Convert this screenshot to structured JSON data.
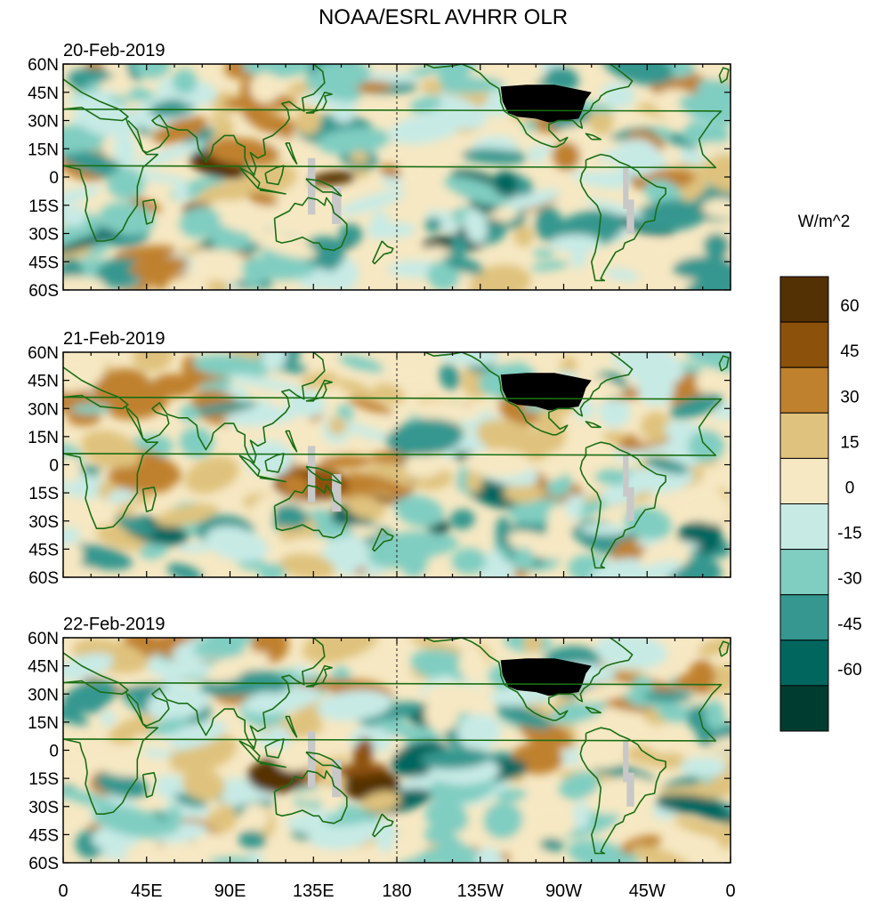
{
  "chart_data": {
    "type": "heatmap",
    "title": "NOAA/ESRL AVHRR OLR",
    "units": "W/m^2",
    "panels": [
      {
        "date": "20-Feb-2019"
      },
      {
        "date": "21-Feb-2019"
      },
      {
        "date": "22-Feb-2019"
      }
    ],
    "lat_ticks": [
      "60N",
      "45N",
      "30N",
      "15N",
      "0",
      "15S",
      "30S",
      "45S",
      "60S"
    ],
    "lat_values": [
      60,
      45,
      30,
      15,
      0,
      -15,
      -30,
      -45,
      -60
    ],
    "lon_ticks": [
      "0",
      "45E",
      "90E",
      "135E",
      "180",
      "135W",
      "90W",
      "45W",
      "0"
    ],
    "lon_values": [
      0,
      45,
      90,
      135,
      180,
      225,
      270,
      315,
      360
    ],
    "lon_range": [
      0,
      360
    ],
    "lat_range": [
      -60,
      60
    ],
    "colorbar": {
      "tick_labels": [
        "60",
        "45",
        "30",
        "15",
        "0",
        "-15",
        "-30",
        "-45",
        "-60"
      ],
      "tick_values": [
        60,
        45,
        30,
        15,
        0,
        -15,
        -30,
        -45,
        -60
      ],
      "levels": [
        75,
        60,
        45,
        30,
        15,
        0,
        -15,
        -30,
        -45,
        -60,
        -75
      ],
      "colors": [
        "#543005",
        "#8c510a",
        "#bf812d",
        "#dfc27d",
        "#f6e8c3",
        "#c7eae5",
        "#80cdc1",
        "#35978f",
        "#01665e",
        "#003c30"
      ]
    },
    "colors": {
      "coastline": "#1a6e14",
      "missing": "#c8c8c8",
      "land_mask": "#000000"
    }
  }
}
